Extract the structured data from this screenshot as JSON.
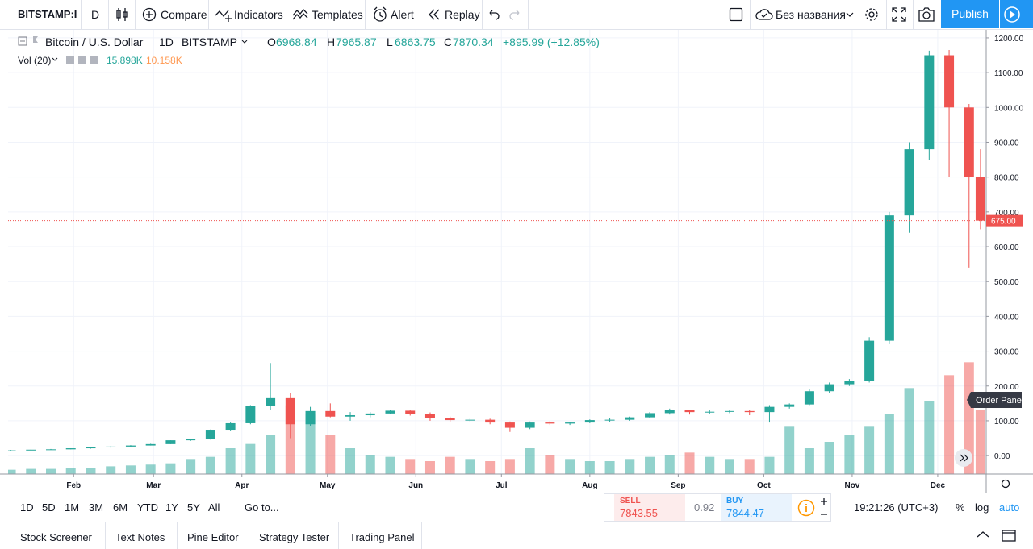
{
  "toolbar": {
    "symbol": "BITSTAMP:I",
    "interval": "D",
    "compare": "Compare",
    "indicators": "Indicators",
    "templates": "Templates",
    "alert": "Alert",
    "replay": "Replay",
    "layout_name": "Без названия",
    "publish": "Publish"
  },
  "legend": {
    "title": "Bitcoin / U.S. Dollar",
    "interval": "1D",
    "exchange": "BITSTAMP",
    "o_label": "O",
    "open": 6968.84,
    "h_label": "H",
    "high": 7965.87,
    "l_label": "L",
    "low": 6863.75,
    "c_label": "C",
    "close": 7870.34,
    "change": "+895.99 (+12.85%)",
    "vol_title": "Vol (20)",
    "vol_value": "15.898K",
    "vol_ma": "10.158K"
  },
  "chart_data": {
    "type": "candlestick",
    "x": [
      10,
      17,
      24,
      31,
      38,
      45,
      52,
      59,
      66,
      73,
      80,
      87,
      94,
      101,
      108,
      115,
      122,
      129,
      136,
      143,
      150,
      157,
      164,
      171,
      178,
      185,
      192,
      199,
      206,
      213,
      220,
      227,
      234,
      241,
      248,
      255,
      262,
      269,
      276,
      283,
      290,
      297,
      304,
      311,
      318,
      325,
      332,
      339,
      346,
      350
    ],
    "open": [
      14,
      15,
      17,
      18,
      21,
      24,
      26,
      29,
      33,
      44,
      47,
      72,
      93,
      142,
      165,
      90,
      128,
      112,
      116,
      121,
      129,
      120,
      108,
      102,
      103,
      95,
      80,
      95,
      92,
      95,
      102,
      103,
      110,
      122,
      130,
      125,
      126,
      128,
      125,
      140,
      147,
      185,
      205,
      215,
      330,
      690,
      880,
      1150,
      1000,
      800
    ],
    "high": [
      16,
      17,
      19,
      21,
      24,
      27,
      30,
      34,
      44,
      48,
      75,
      95,
      145,
      266,
      180,
      140,
      150,
      125,
      125,
      132,
      131,
      124,
      112,
      108,
      106,
      98,
      98,
      99,
      96,
      104,
      108,
      112,
      125,
      135,
      132,
      130,
      132,
      132,
      145,
      150,
      190,
      210,
      220,
      340,
      700,
      900,
      1163,
      1165,
      1010,
      880
    ],
    "low": [
      14,
      15,
      17,
      18,
      20,
      23,
      25,
      29,
      33,
      42,
      46,
      70,
      90,
      130,
      50,
      85,
      110,
      100,
      110,
      119,
      115,
      100,
      98,
      95,
      90,
      68,
      76,
      88,
      88,
      93,
      96,
      100,
      108,
      118,
      118,
      120,
      122,
      116,
      95,
      135,
      145,
      180,
      200,
      210,
      320,
      640,
      850,
      800,
      540,
      650
    ],
    "close": [
      15,
      17,
      18,
      21,
      24,
      26,
      29,
      33,
      44,
      47,
      72,
      93,
      142,
      165,
      90,
      128,
      112,
      116,
      121,
      129,
      120,
      108,
      102,
      103,
      95,
      80,
      95,
      92,
      95,
      102,
      103,
      110,
      122,
      130,
      125,
      126,
      128,
      125,
      140,
      147,
      185,
      205,
      215,
      330,
      690,
      880,
      1150,
      1000,
      800,
      675
    ],
    "volume": [
      10,
      12,
      12,
      14,
      15,
      18,
      20,
      22,
      25,
      35,
      40,
      60,
      70,
      90,
      160,
      140,
      90,
      60,
      45,
      40,
      35,
      30,
      40,
      35,
      30,
      35,
      60,
      45,
      35,
      30,
      30,
      35,
      40,
      45,
      50,
      40,
      35,
      35,
      40,
      110,
      60,
      75,
      90,
      110,
      140,
      200,
      170,
      230,
      260,
      150
    ],
    "up_color": "#26a69a",
    "down_color": "#ef5350",
    "xlim": [
      9,
      352
    ],
    "xticks": [
      {
        "value": 32,
        "label": "Feb"
      },
      {
        "value": 60,
        "label": "Mar"
      },
      {
        "value": 91,
        "label": "Apr"
      },
      {
        "value": 121,
        "label": "May"
      },
      {
        "value": 152,
        "label": "Jun"
      },
      {
        "value": 182,
        "label": "Jul"
      },
      {
        "value": 213,
        "label": "Aug"
      },
      {
        "value": 244,
        "label": "Sep"
      },
      {
        "value": 274,
        "label": "Oct"
      },
      {
        "value": 305,
        "label": "Nov"
      },
      {
        "value": 335,
        "label": "Dec"
      }
    ],
    "ylim": [
      -53,
      1223
    ],
    "yticks": [
      {
        "value": 0,
        "label": "0.00"
      },
      {
        "value": 100,
        "label": "100.00"
      },
      {
        "value": 200,
        "label": "200.00"
      },
      {
        "value": 300,
        "label": "300.00"
      },
      {
        "value": 400,
        "label": "400.00"
      },
      {
        "value": 500,
        "label": "500.00"
      },
      {
        "value": 600,
        "label": "600.00"
      },
      {
        "value": 700,
        "label": "700.00"
      },
      {
        "value": 800,
        "label": "800.00"
      },
      {
        "value": 900,
        "label": "900.00"
      },
      {
        "value": 1000,
        "label": "1000.00"
      },
      {
        "value": 1100,
        "label": "1100.00"
      },
      {
        "value": 1200,
        "label": "1200.00"
      }
    ],
    "vlim": [
      0,
      300
    ],
    "last_price": {
      "value": 675,
      "label": "675.00"
    },
    "grid": true
  },
  "order_panel": "Order Panel",
  "bottom": {
    "ranges": [
      "1D",
      "5D",
      "1M",
      "3M",
      "6M",
      "YTD",
      "1Y",
      "5Y",
      "All"
    ],
    "goto": "Go to...",
    "time": "19:21:26 (UTC+3)",
    "percent": "%",
    "log": "log",
    "auto": "auto"
  },
  "trade": {
    "sell": "SELL",
    "sell_price": "7843.55",
    "spread": 0.92,
    "buy": "BUY",
    "buy_price": "7844.47"
  },
  "tabs": [
    "Stock Screener",
    "Text Notes",
    "Pine Editor",
    "Strategy Tester",
    "Trading Panel"
  ]
}
